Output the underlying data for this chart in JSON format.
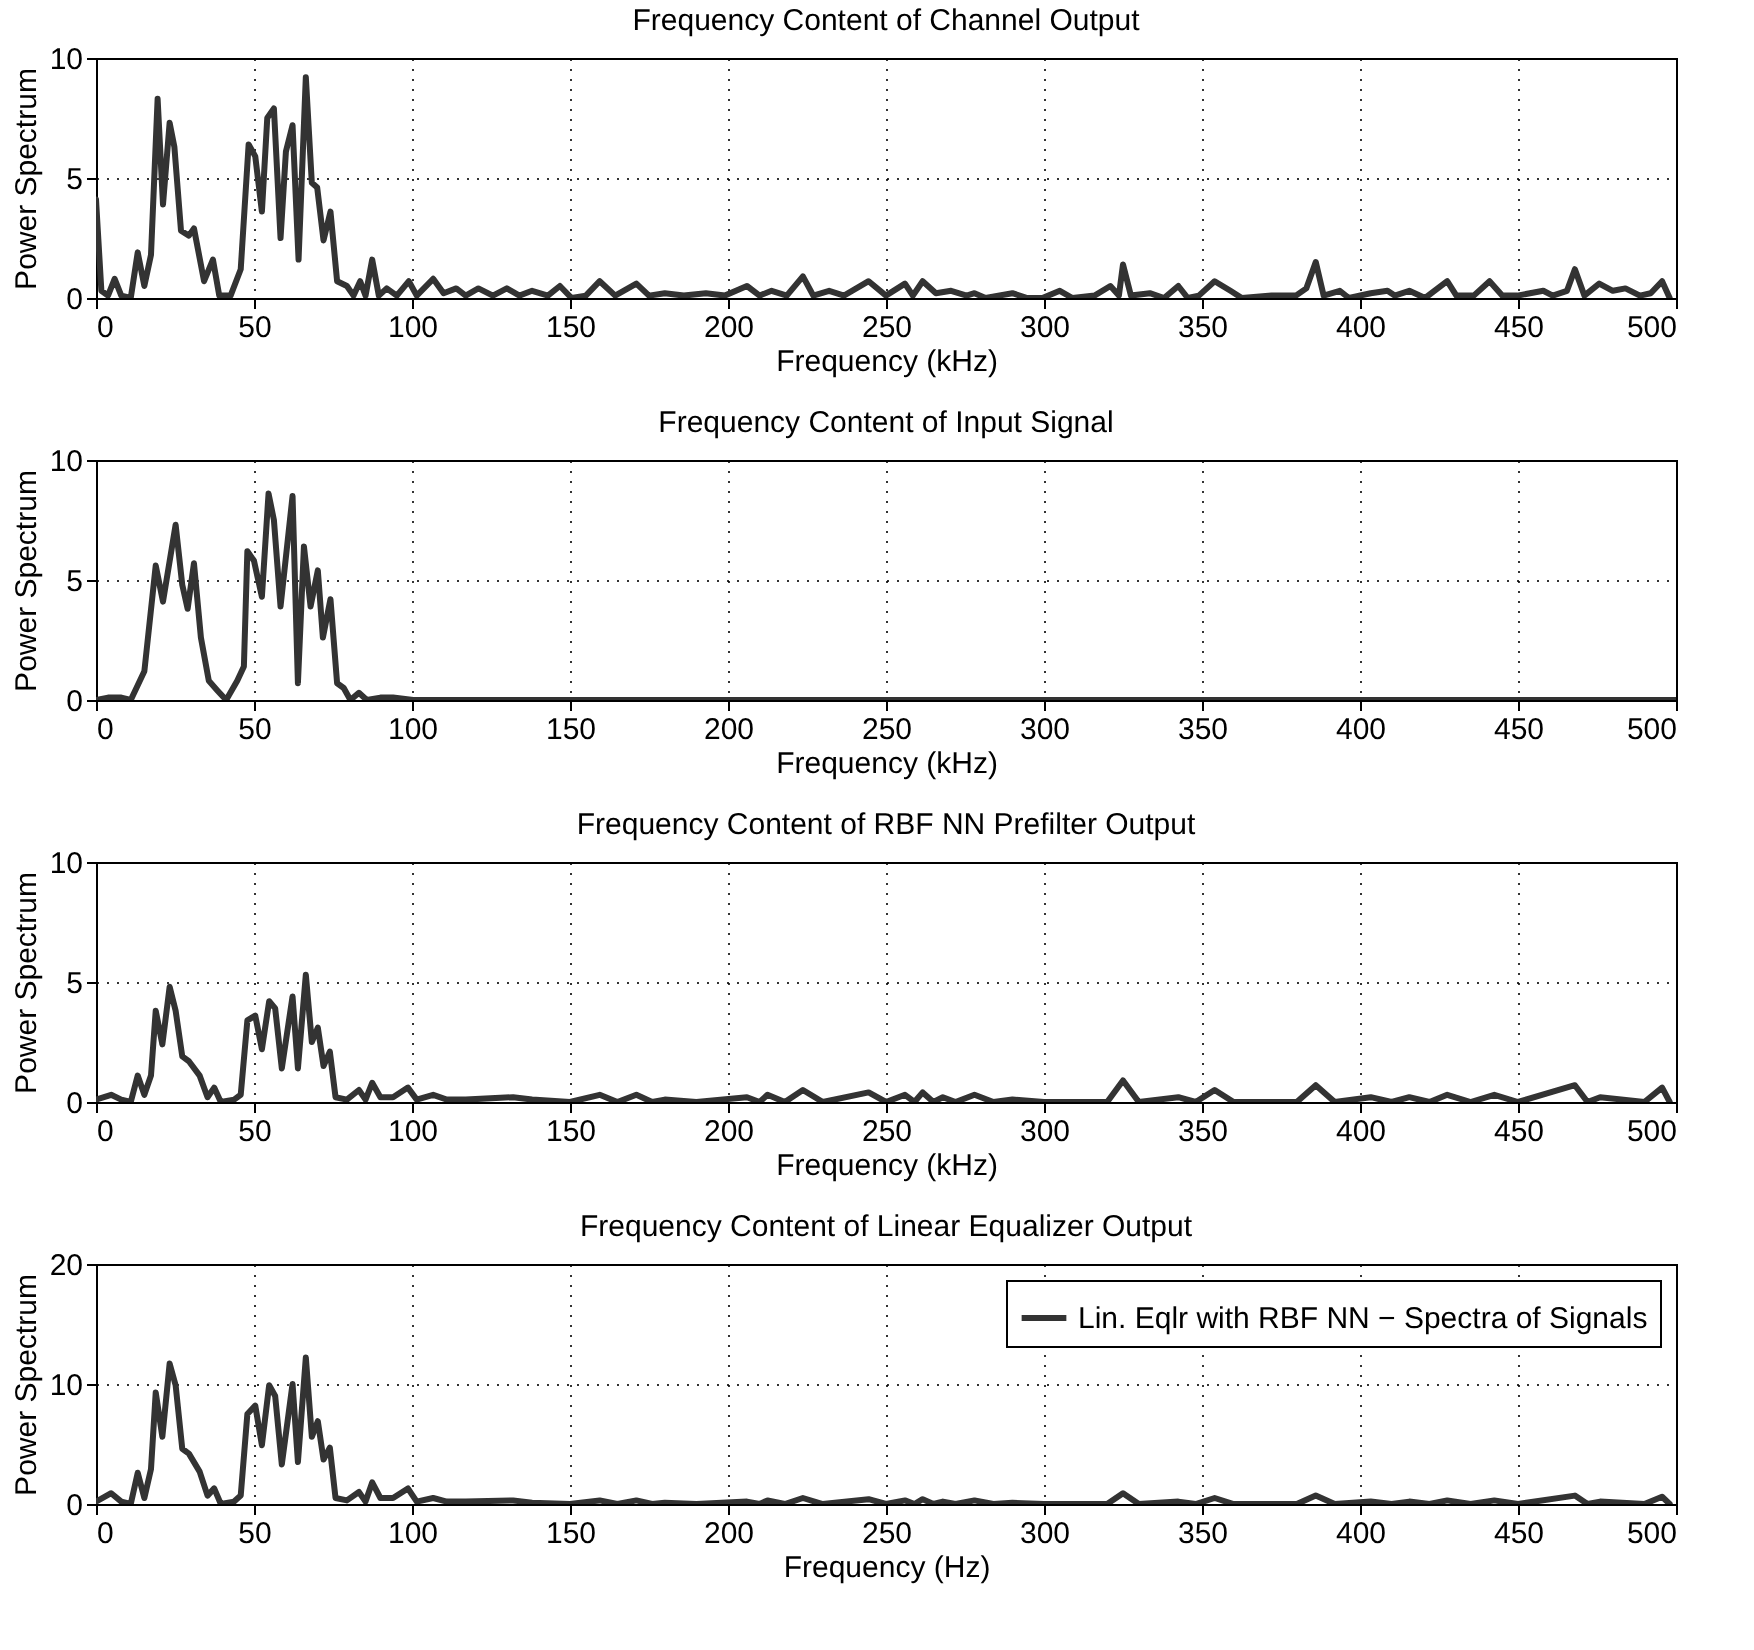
{
  "chart_data": [
    {
      "type": "line",
      "title": "Frequency Content of Channel Output",
      "xlabel": "Frequency (kHz)",
      "ylabel": "Power Spectrum",
      "xlim": [
        0,
        500
      ],
      "xticks": [
        0,
        50,
        100,
        150,
        200,
        250,
        300,
        350,
        400,
        450,
        500
      ],
      "ylim": [
        0,
        10
      ],
      "yticks": [
        0,
        5,
        10
      ],
      "grid": true,
      "line_style": "solid",
      "x": [
        0,
        1.7,
        3.8,
        5.9,
        8,
        11,
        13.2,
        15.3,
        17.4,
        19.5,
        21.2,
        23.3,
        24.8,
        26.9,
        29.4,
        31,
        34.2,
        37,
        39,
        42.6,
        45.8,
        48.3,
        50.4,
        52.5,
        54.2,
        56.3,
        58.4,
        60.1,
        62.2,
        64.1,
        66.4,
        68.3,
        70,
        72,
        74.2,
        76.3,
        79.4,
        81.5,
        83.6,
        85.3,
        87.4,
        89.5,
        92,
        95.2,
        99,
        101.5,
        106.7,
        110,
        114,
        117,
        121,
        125.6,
        130,
        134,
        138,
        143,
        146.8,
        150.5,
        155,
        159.4,
        164.3,
        171,
        175,
        180,
        186,
        193,
        199,
        206,
        210,
        213.8,
        218.6,
        223.7,
        227,
        232,
        236.7,
        244.5,
        250,
        256,
        258.5,
        261.6,
        265.8,
        270.6,
        275.5,
        278,
        281.5,
        290,
        294.7,
        299.5,
        305,
        309,
        316,
        321,
        323.7,
        325,
        327.5,
        333.5,
        338,
        342.5,
        345.5,
        349,
        354,
        359,
        362.6,
        372,
        379.7,
        383,
        386,
        388.5,
        393.6,
        396.5,
        403.4,
        408.7,
        411,
        415.6,
        420.6,
        427.6,
        430.5,
        436,
        441,
        445,
        449.8,
        458,
        461,
        465.5,
        468,
        471,
        475.7,
        480,
        484,
        488.6,
        492,
        495.6,
        498
      ],
      "series": [
        {
          "color": "#333333",
          "values": [
            4.1,
            0.3,
            0.1,
            0.8,
            0.1,
            0,
            1.9,
            0.5,
            1.8,
            8.3,
            3.9,
            7.3,
            6.3,
            2.8,
            2.6,
            2.9,
            0.7,
            1.6,
            0.1,
            0.1,
            1.2,
            6.4,
            5.9,
            3.6,
            7.5,
            7.9,
            2.5,
            6.1,
            7.2,
            1.6,
            9.2,
            4.8,
            4.6,
            2.4,
            3.6,
            0.7,
            0.5,
            0.1,
            0.7,
            0.1,
            1.6,
            0.1,
            0.4,
            0.1,
            0.7,
            0.1,
            0.8,
            0.2,
            0.4,
            0.1,
            0.4,
            0.1,
            0.4,
            0.1,
            0.3,
            0.1,
            0.5,
            0,
            0.1,
            0.7,
            0.1,
            0.6,
            0.1,
            0.2,
            0.1,
            0.2,
            0.1,
            0.5,
            0.1,
            0.3,
            0.1,
            0.9,
            0.1,
            0.3,
            0.1,
            0.7,
            0.1,
            0.6,
            0.1,
            0.7,
            0.2,
            0.3,
            0.1,
            0.2,
            0,
            0.2,
            0,
            0,
            0.3,
            0,
            0.1,
            0.5,
            0.1,
            1.4,
            0.1,
            0.2,
            0,
            0.5,
            0,
            0.1,
            0.7,
            0.3,
            0,
            0.1,
            0.1,
            0.4,
            1.5,
            0.1,
            0.3,
            0,
            0.2,
            0.3,
            0.1,
            0.3,
            0,
            0.7,
            0.1,
            0.1,
            0.7,
            0.1,
            0.1,
            0.3,
            0.1,
            0.3,
            1.2,
            0.1,
            0.6,
            0.3,
            0.4,
            0.1,
            0.2,
            0.7,
            0
          ]
        }
      ]
    },
    {
      "type": "line",
      "title": "Frequency Content of Input Signal",
      "xlabel": "Frequency (kHz)",
      "ylabel": "Power Spectrum",
      "xlim": [
        0,
        500
      ],
      "xticks": [
        0,
        50,
        100,
        150,
        200,
        250,
        300,
        350,
        400,
        450,
        500
      ],
      "ylim": [
        0,
        10
      ],
      "yticks": [
        0,
        5,
        10
      ],
      "grid": true,
      "line_style": "solid",
      "x": [
        0,
        3.8,
        8,
        11,
        15.3,
        18.9,
        21.2,
        25.2,
        27.3,
        29,
        31,
        33.2,
        35.7,
        38.4,
        41.2,
        44.7,
        46.8,
        47.9,
        50,
        52.5,
        54.6,
        56.3,
        58.4,
        62.2,
        63.9,
        65.8,
        67.9,
        70.2,
        71.8,
        74.2,
        76.3,
        78.4,
        80.5,
        83.2,
        85.7,
        90,
        94,
        100.4,
        150,
        200,
        300,
        400,
        500
      ],
      "series": [
        {
          "color": "#333333",
          "values": [
            0,
            0.1,
            0.1,
            0,
            1.2,
            5.6,
            4.1,
            7.3,
            4.8,
            3.8,
            5.7,
            2.6,
            0.8,
            0.4,
            0,
            0.8,
            1.4,
            6.2,
            5.8,
            4.3,
            8.6,
            7.5,
            3.9,
            8.5,
            0.7,
            6.4,
            3.9,
            5.4,
            2.6,
            4.2,
            0.7,
            0.5,
            0,
            0.3,
            0,
            0.1,
            0.1,
            0,
            0,
            0,
            0,
            0,
            0
          ]
        }
      ]
    },
    {
      "type": "line",
      "title": "Frequency Content of RBF NN Prefilter Output",
      "xlabel": "Frequency (kHz)",
      "ylabel": "Power Spectrum",
      "xlim": [
        0,
        500
      ],
      "xticks": [
        0,
        50,
        100,
        150,
        200,
        250,
        300,
        350,
        400,
        450,
        500
      ],
      "ylim": [
        0,
        10
      ],
      "yticks": [
        0,
        5,
        10
      ],
      "grid": true,
      "line_style": "solid",
      "x": [
        0,
        4.8,
        8,
        11,
        13.2,
        15.3,
        17.4,
        18.9,
        21,
        23.3,
        25.2,
        27.3,
        29.4,
        32.8,
        35.3,
        37.4,
        39.5,
        43.7,
        45.8,
        47.9,
        50.4,
        52.5,
        54.8,
        56.7,
        58.8,
        62.2,
        63.9,
        66.4,
        68.3,
        70.2,
        72,
        74,
        75.8,
        79.4,
        83.2,
        85.3,
        87.4,
        90,
        94,
        98.7,
        101.5,
        106.7,
        111,
        117,
        132,
        138,
        150,
        159.4,
        165,
        171,
        176,
        180,
        190,
        206,
        210,
        212.5,
        218,
        223.7,
        230,
        244.5,
        250,
        256,
        259,
        261.6,
        265,
        268,
        272,
        278,
        284,
        290,
        300,
        320,
        325,
        330,
        342.5,
        348,
        354,
        360,
        380,
        386,
        392,
        403.4,
        410,
        415.6,
        422,
        427.6,
        435,
        442.5,
        450,
        468,
        472,
        476,
        490,
        495.6,
        498
      ],
      "series": [
        {
          "color": "#333333",
          "values": [
            0.1,
            0.3,
            0.1,
            0,
            1.1,
            0.3,
            1.1,
            3.8,
            2.4,
            4.8,
            3.8,
            1.9,
            1.7,
            1.1,
            0.2,
            0.6,
            0,
            0.1,
            0.3,
            3.4,
            3.6,
            2.2,
            4.2,
            3.9,
            1.4,
            4.4,
            1.4,
            5.3,
            2.5,
            3.1,
            1.5,
            2.1,
            0.2,
            0.1,
            0.5,
            0.1,
            0.8,
            0.2,
            0.2,
            0.6,
            0.1,
            0.3,
            0.1,
            0.1,
            0.2,
            0.1,
            0,
            0.3,
            0,
            0.3,
            0,
            0.1,
            0,
            0.2,
            0,
            0.3,
            0,
            0.5,
            0,
            0.4,
            0,
            0.3,
            0,
            0.4,
            0,
            0.2,
            0,
            0.3,
            0,
            0.1,
            0,
            0,
            0.9,
            0,
            0.2,
            0,
            0.5,
            0,
            0,
            0.7,
            0,
            0.2,
            0,
            0.2,
            0,
            0.3,
            0,
            0.3,
            0,
            0.7,
            0,
            0.2,
            0,
            0.6,
            0
          ]
        }
      ]
    },
    {
      "type": "line",
      "title": "Frequency Content of Linear Equalizer Output",
      "xlabel": "Frequency (Hz)",
      "ylabel": "Power Spectrum",
      "xlim": [
        0,
        500
      ],
      "xticks": [
        0,
        50,
        100,
        150,
        200,
        250,
        300,
        350,
        400,
        450,
        500
      ],
      "ylim": [
        0,
        20
      ],
      "yticks": [
        0,
        10,
        20
      ],
      "grid": true,
      "line_style": "solid",
      "legend": "top right",
      "x": [
        0,
        4.8,
        8,
        11,
        13.2,
        15.3,
        17.4,
        18.9,
        21,
        23.3,
        25.2,
        27.3,
        29.4,
        32.8,
        35.3,
        37.4,
        39.5,
        43.7,
        45.8,
        47.9,
        50.4,
        52.5,
        54.8,
        56.7,
        58.8,
        62.2,
        63.9,
        66.4,
        68.3,
        70.2,
        72,
        74,
        75.8,
        79.4,
        83.2,
        85.3,
        87.4,
        90,
        94,
        98.7,
        101.5,
        106.7,
        111,
        117,
        132,
        138,
        150,
        159.4,
        165,
        171,
        176,
        180,
        190,
        206,
        210,
        212.5,
        218,
        223.7,
        230,
        244.5,
        250,
        256,
        259,
        261.6,
        265,
        268,
        272,
        278,
        284,
        290,
        300,
        320,
        325,
        330,
        342.5,
        348,
        354,
        360,
        380,
        386,
        392,
        403.4,
        410,
        415.6,
        422,
        427.6,
        435,
        442.5,
        450,
        468,
        472,
        476,
        490,
        495.6,
        498
      ],
      "series": [
        {
          "name": "Lin. Eqlr with RBF NN − Spectra of Signals",
          "color": "#333333",
          "values": [
            0.2,
            0.9,
            0.2,
            0,
            2.6,
            0.5,
            2.9,
            9.3,
            5.6,
            11.7,
            9.9,
            4.6,
            4.2,
            2.7,
            0.7,
            1.3,
            0,
            0.2,
            0.7,
            7.5,
            8.2,
            4.9,
            9.9,
            9,
            3.3,
            10,
            3.5,
            12.2,
            5.6,
            6.9,
            3.7,
            4.7,
            0.5,
            0.3,
            1,
            0.2,
            1.8,
            0.5,
            0.5,
            1.3,
            0.2,
            0.5,
            0.2,
            0.2,
            0.3,
            0.1,
            0,
            0.3,
            0,
            0.3,
            0,
            0.1,
            0,
            0.2,
            0,
            0.3,
            0,
            0.5,
            0,
            0.4,
            0,
            0.3,
            0,
            0.4,
            0,
            0.2,
            0,
            0.3,
            0,
            0.1,
            0,
            0,
            0.9,
            0,
            0.2,
            0,
            0.5,
            0,
            0,
            0.7,
            0,
            0.2,
            0,
            0.2,
            0,
            0.3,
            0,
            0.3,
            0,
            0.7,
            0,
            0.2,
            0,
            0.6,
            0
          ]
        }
      ]
    }
  ]
}
